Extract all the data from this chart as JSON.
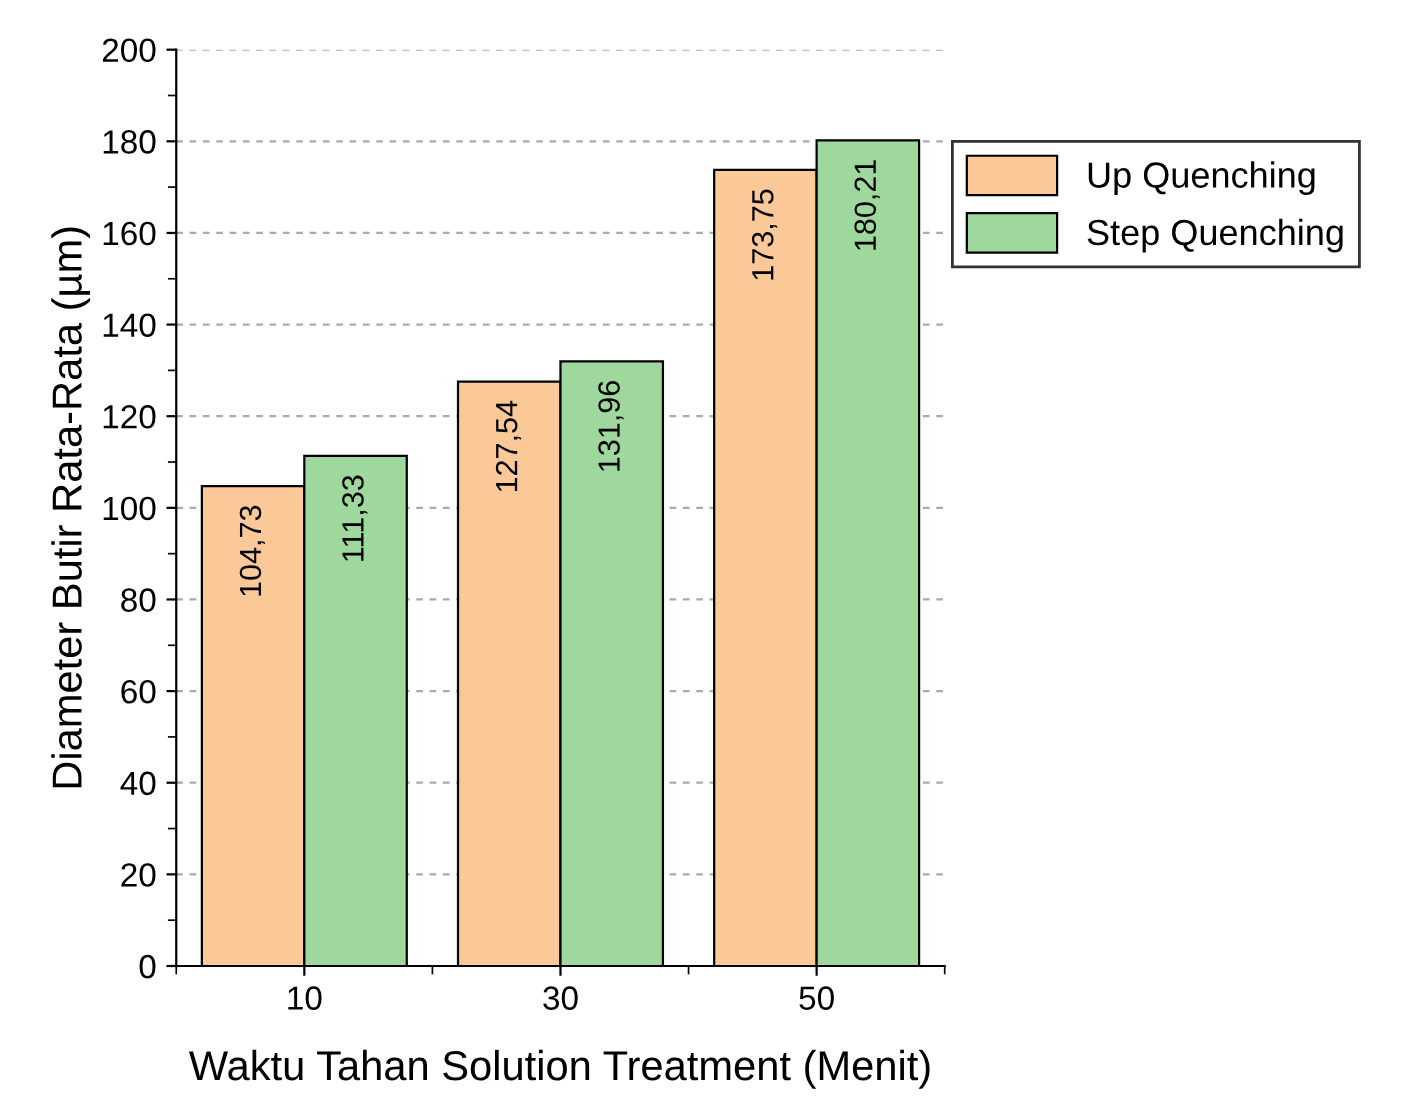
{
  "chart_data": {
    "type": "bar",
    "xlabel": "Waktu Tahan Solution Treatment (Menit)",
    "ylabel": "Diameter Butir Rata-Rata (µm)",
    "categories": [
      "10",
      "30",
      "50"
    ],
    "series": [
      {
        "name": "Up Quenching",
        "color": "#fbc898",
        "values": [
          104.73,
          127.54,
          173.75
        ],
        "value_labels": [
          "104,73",
          "127,54",
          "173,75"
        ]
      },
      {
        "name": "Step Quenching",
        "color": "#9ed89c",
        "values": [
          111.33,
          131.96,
          180.21
        ],
        "value_labels": [
          "111,33",
          "131,96",
          "180,21"
        ]
      }
    ],
    "ylim": [
      0,
      200
    ],
    "yticks": [
      0,
      20,
      40,
      60,
      80,
      100,
      120,
      140,
      160,
      180,
      200
    ],
    "grid": "y",
    "legend": "top right"
  }
}
